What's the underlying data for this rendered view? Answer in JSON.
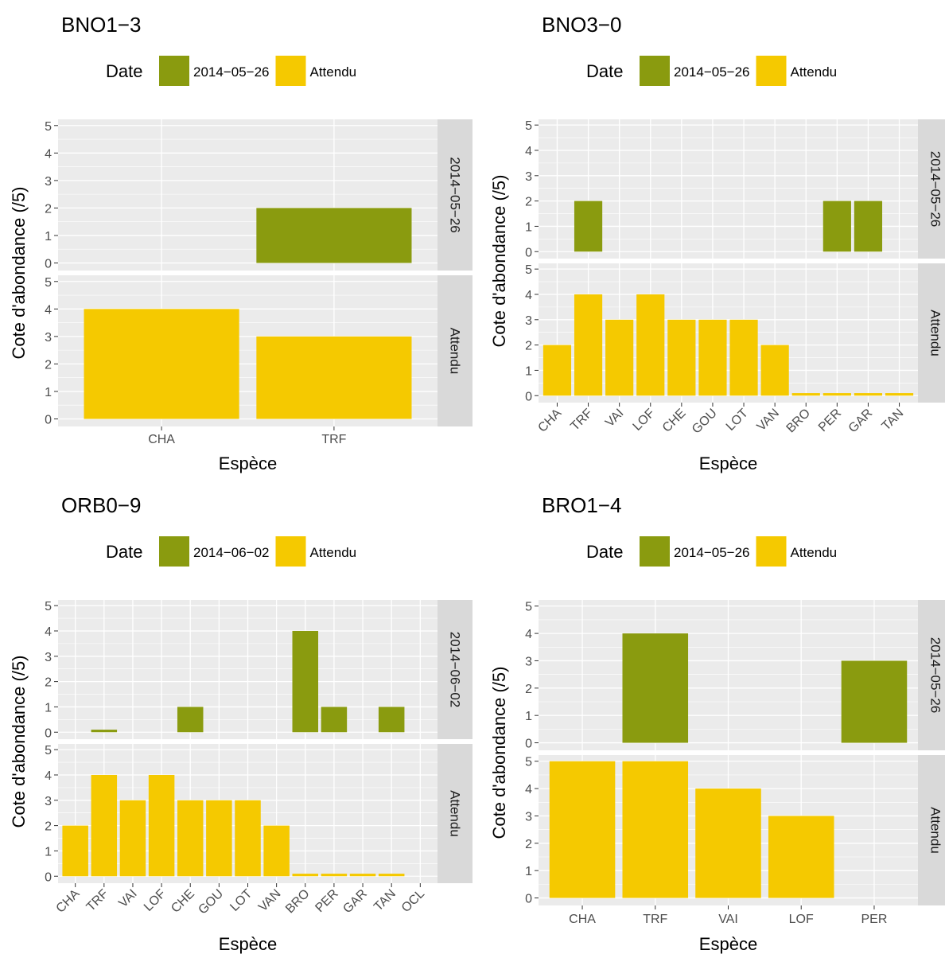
{
  "figure": {
    "colors": {
      "observed": "#8A9B0F",
      "expected": "#F5C900",
      "panel_bg": "#EBEBEB",
      "strip_bg": "#D9D9D9",
      "grid": "#FFFFFF",
      "text": "#000000",
      "axis_text": "#4D4D4D"
    }
  },
  "chart_data": [
    {
      "type": "bar",
      "title": "BNO1−3",
      "legend_title": "Date",
      "legend_position": "top",
      "legend": [
        "2014−05−26",
        "Attendu"
      ],
      "xlabel": "Espèce",
      "ylabel": "Cote d'abondance (/5)",
      "ylim": [
        0,
        5
      ],
      "yticks": [
        "0",
        "1",
        "2",
        "3",
        "4",
        "5"
      ],
      "categories": [
        "CHA",
        "TRF"
      ],
      "rotate_labels": false,
      "grid": true,
      "series": [
        {
          "name": "2014−05−26",
          "strip": "2014−05−26",
          "values": [
            null,
            2
          ]
        },
        {
          "name": "Attendu",
          "strip": "Attendu",
          "values": [
            4,
            3
          ]
        }
      ]
    },
    {
      "type": "bar",
      "title": "BNO3−0",
      "legend_title": "Date",
      "legend_position": "top",
      "legend": [
        "2014−05−26",
        "Attendu"
      ],
      "xlabel": "Espèce",
      "ylabel": "Cote d'abondance (/5)",
      "ylim": [
        0,
        5
      ],
      "yticks": [
        "0",
        "1",
        "2",
        "3",
        "4",
        "5"
      ],
      "categories": [
        "CHA",
        "TRF",
        "VAI",
        "LOF",
        "CHE",
        "GOU",
        "LOT",
        "VAN",
        "BRO",
        "PER",
        "GAR",
        "TAN"
      ],
      "rotate_labels": true,
      "grid": true,
      "series": [
        {
          "name": "2014−05−26",
          "strip": "2014−05−26",
          "values": [
            null,
            2,
            null,
            null,
            null,
            null,
            null,
            null,
            null,
            2,
            2,
            null
          ]
        },
        {
          "name": "Attendu",
          "strip": "Attendu",
          "values": [
            2,
            4,
            3,
            4,
            3,
            3,
            3,
            2,
            0.1,
            0.1,
            0.1,
            0.1
          ]
        }
      ]
    },
    {
      "type": "bar",
      "title": "ORB0−9",
      "legend_title": "Date",
      "legend_position": "top",
      "legend": [
        "2014−06−02",
        "Attendu"
      ],
      "xlabel": "Espèce",
      "ylabel": "Cote d'abondance (/5)",
      "ylim": [
        0,
        5
      ],
      "yticks": [
        "0",
        "1",
        "2",
        "3",
        "4",
        "5"
      ],
      "categories": [
        "CHA",
        "TRF",
        "VAI",
        "LOF",
        "CHE",
        "GOU",
        "LOT",
        "VAN",
        "BRO",
        "PER",
        "GAR",
        "TAN",
        "OCL"
      ],
      "rotate_labels": true,
      "grid": true,
      "series": [
        {
          "name": "2014−06−02",
          "strip": "2014−06−02",
          "values": [
            null,
            0.1,
            null,
            null,
            1,
            null,
            null,
            null,
            4,
            1,
            null,
            1,
            null
          ]
        },
        {
          "name": "Attendu",
          "strip": "Attendu",
          "values": [
            2,
            4,
            3,
            4,
            3,
            3,
            3,
            2,
            0.1,
            0.1,
            0.1,
            0.1,
            null
          ]
        }
      ]
    },
    {
      "type": "bar",
      "title": "BRO1−4",
      "legend_title": "Date",
      "legend_position": "top",
      "legend": [
        "2014−05−26",
        "Attendu"
      ],
      "xlabel": "Espèce",
      "ylabel": "Cote d'abondance (/5)",
      "ylim": [
        0,
        5
      ],
      "yticks": [
        "0",
        "1",
        "2",
        "3",
        "4",
        "5"
      ],
      "categories": [
        "CHA",
        "TRF",
        "VAI",
        "LOF",
        "PER"
      ],
      "rotate_labels": false,
      "grid": true,
      "series": [
        {
          "name": "2014−05−26",
          "strip": "2014−05−26",
          "values": [
            null,
            4,
            null,
            null,
            3
          ]
        },
        {
          "name": "Attendu",
          "strip": "Attendu",
          "values": [
            5,
            5,
            4,
            3,
            null
          ]
        }
      ]
    }
  ]
}
